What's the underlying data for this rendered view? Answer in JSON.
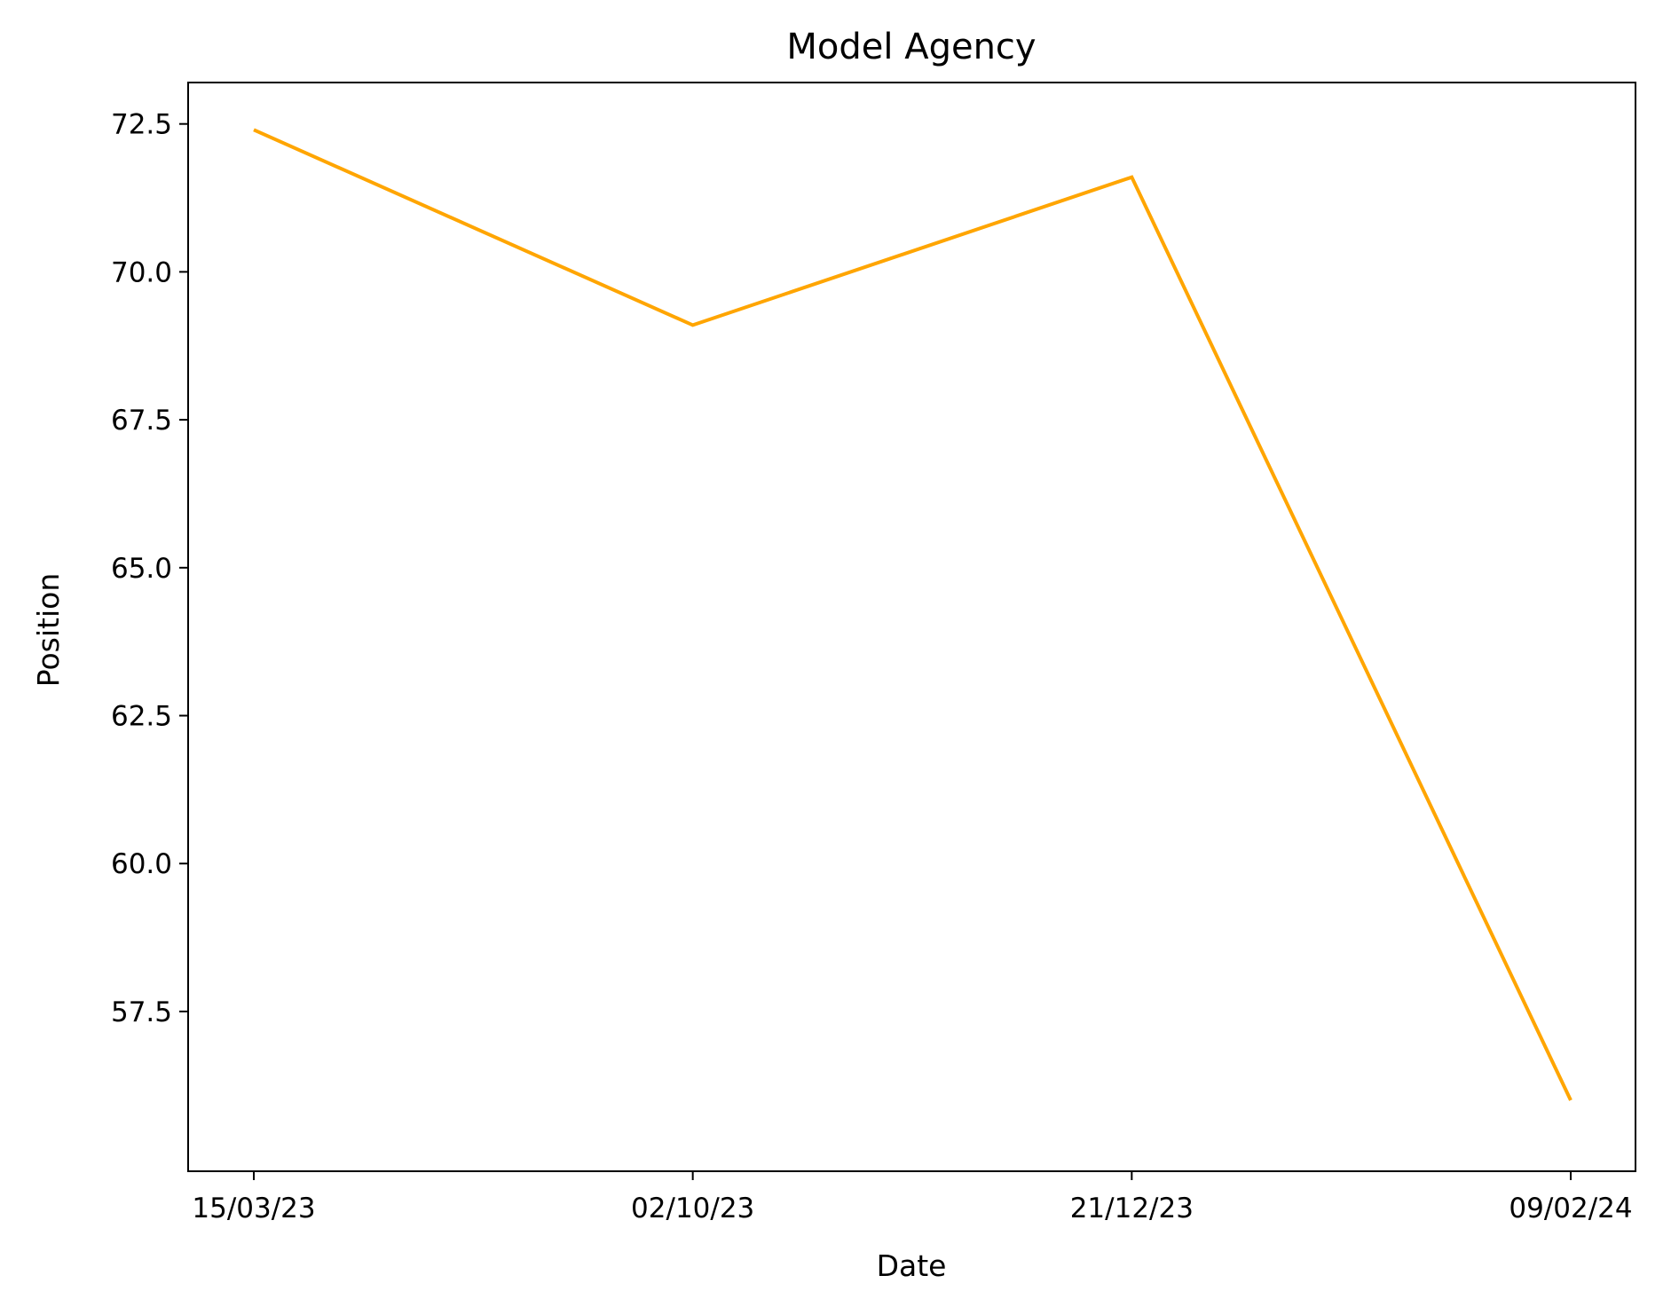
{
  "chart_data": {
    "type": "line",
    "title": "Model Agency",
    "xlabel": "Date",
    "ylabel": "Position",
    "categories": [
      "15/03/23",
      "02/10/23",
      "21/12/23",
      "09/02/24"
    ],
    "series": [
      {
        "values": [
          72.4,
          69.1,
          71.6,
          56.0
        ],
        "color": "#ffa500"
      }
    ],
    "ylim": [
      54.8,
      73.2
    ],
    "yticks": [
      "57.5",
      "60.0",
      "62.5",
      "65.0",
      "67.5",
      "70.0",
      "72.5"
    ],
    "grid": false,
    "legend": "none"
  }
}
